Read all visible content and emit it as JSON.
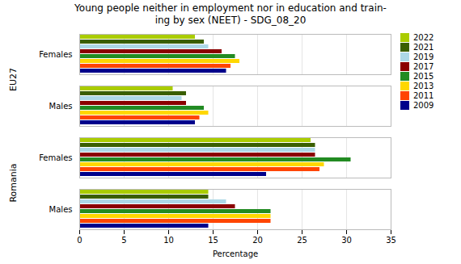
{
  "chart_data": {
    "type": "bar",
    "orientation": "horizontal",
    "title": "Young people neither in employment nor in education and train-\ning by sex (NEET) - SDG_08_20",
    "xlabel": "Percentage",
    "categories": [
      "Females",
      "Males",
      "Females",
      "Males"
    ],
    "groups": [
      "EU27",
      "EU27",
      "Romania",
      "Romania"
    ],
    "series": [
      {
        "name": "2022",
        "color": "#aacc00",
        "values": [
          13.0,
          10.5,
          26.0,
          14.5
        ]
      },
      {
        "name": "2021",
        "color": "#3a5f00",
        "values": [
          14.0,
          12.0,
          26.5,
          14.5
        ]
      },
      {
        "name": "2019",
        "color": "#add8e6",
        "values": [
          14.5,
          11.5,
          26.5,
          16.5
        ]
      },
      {
        "name": "2017",
        "color": "#8b0000",
        "values": [
          16.0,
          12.0,
          26.5,
          17.5
        ]
      },
      {
        "name": "2015",
        "color": "#228b22",
        "values": [
          17.5,
          14.0,
          30.5,
          21.5
        ]
      },
      {
        "name": "2013",
        "color": "#ffd700",
        "values": [
          18.0,
          14.5,
          27.5,
          21.5
        ]
      },
      {
        "name": "2011",
        "color": "#ff4500",
        "values": [
          17.0,
          13.5,
          27.0,
          21.5
        ]
      },
      {
        "name": "2009",
        "color": "#00008b",
        "values": [
          16.5,
          13.0,
          21.0,
          14.5
        ]
      }
    ],
    "xlim": [
      0,
      35
    ],
    "xticks": [
      0,
      5,
      10,
      15,
      20,
      25,
      30,
      35
    ],
    "grid": true,
    "legend": "right"
  }
}
